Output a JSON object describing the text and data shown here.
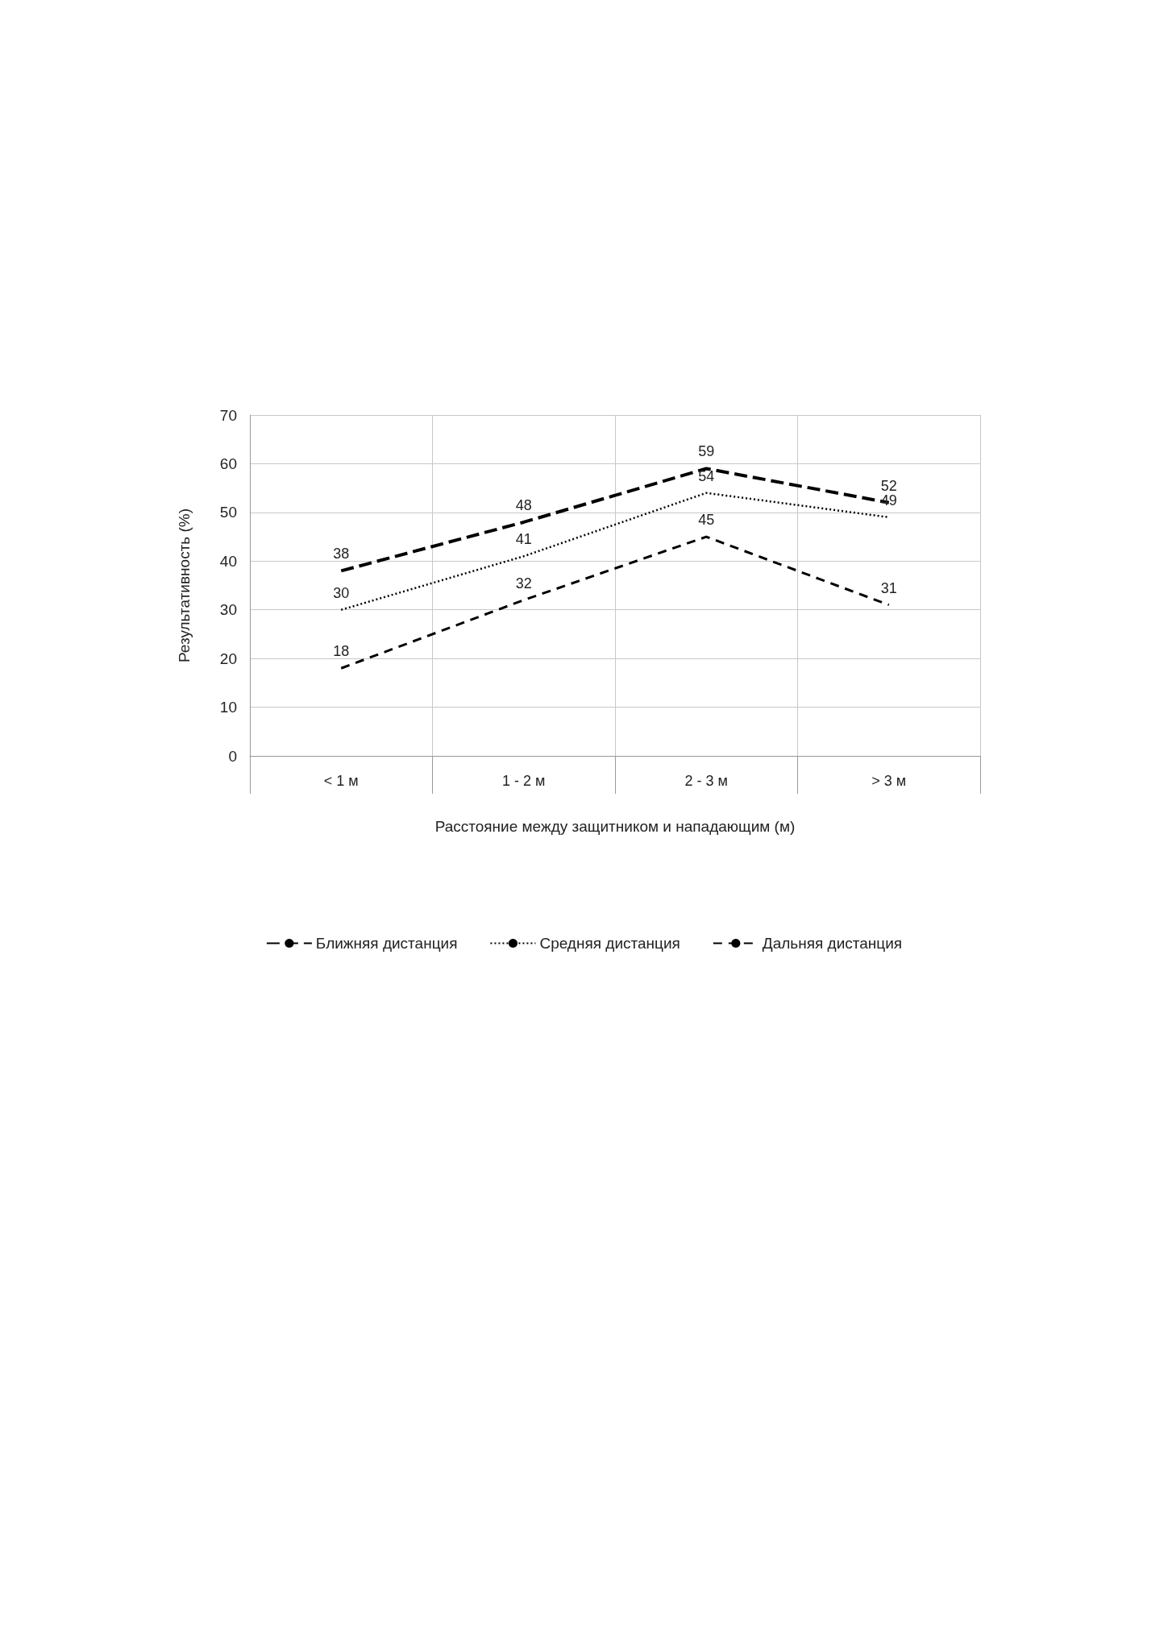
{
  "chart_data": {
    "type": "line",
    "xlabel": "Расстояние между защитником и нападающим (м)",
    "ylabel": "Результативность (%)",
    "categories": [
      "< 1 м",
      "1 - 2 м",
      "2 - 3 м",
      "> 3 м"
    ],
    "series": [
      {
        "name": "Ближняя дистанция",
        "color": "#000000",
        "line_style": "dashed",
        "values": [
          38,
          48,
          59,
          52
        ]
      },
      {
        "name": "Средняя дистанция",
        "color": "#000000",
        "line_style": "dotted",
        "values": [
          30,
          41,
          54,
          49
        ]
      },
      {
        "name": "Дальняя дистанция",
        "color": "#000000",
        "line_style": "dashed",
        "values": [
          18,
          32,
          45,
          31
        ]
      }
    ],
    "ylim": [
      0,
      70
    ],
    "yticks": [
      0,
      10,
      20,
      30,
      40,
      50,
      60,
      70
    ],
    "grid": true,
    "legend": "bottom",
    "marker": "none",
    "data_labels": true
  }
}
